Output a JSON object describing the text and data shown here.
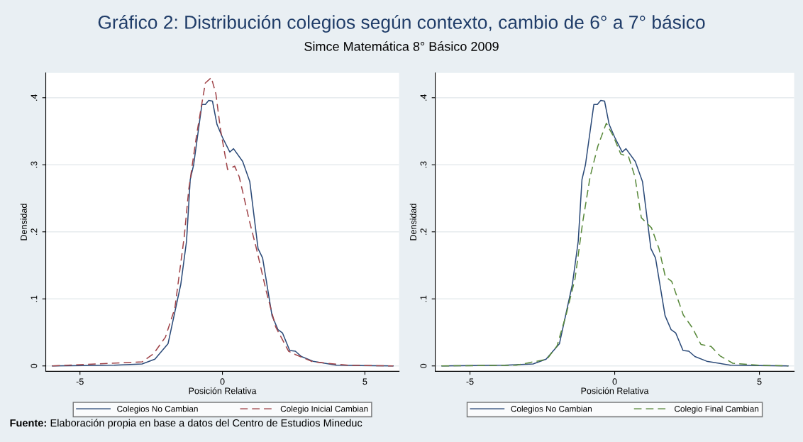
{
  "chart_data": [
    {
      "type": "line",
      "title": "Gráfico 2: Distribución colegios según contexto, cambio de 6° a 7° básico",
      "subtitle": "Simce Matemática 8° Básico 2009",
      "xlabel": "Posición Relativa",
      "ylabel": "Densidad",
      "xlim": [
        -6.2,
        6.2
      ],
      "ylim": [
        -0.008,
        0.437
      ],
      "xticks": [
        -5,
        0,
        5
      ],
      "yticks": [
        {
          "value": 0,
          "label": "0"
        },
        {
          "value": 0.1,
          "label": ".1"
        },
        {
          "value": 0.2,
          "label": ".2"
        },
        {
          "value": 0.3,
          "label": ".3"
        },
        {
          "value": 0.4,
          "label": ".4"
        }
      ],
      "grid": "y",
      "legend": "bottom",
      "marker": "none",
      "series": [
        {
          "name": "Colegios No Cambian",
          "color": "#2b4a78",
          "line_style": "solid",
          "x": [
            -5.97,
            -3.8,
            -2.82,
            -2.37,
            -1.91,
            -1.46,
            -1.26,
            -1.13,
            -1.01,
            -0.72,
            -0.6,
            -0.48,
            -0.35,
            -0.19,
            0,
            0.26,
            0.39,
            0.71,
            0.96,
            1.25,
            1.41,
            1.74,
            1.95,
            2.11,
            2.36,
            2.56,
            2.77,
            3.18,
            4.0,
            5.99
          ],
          "values": [
            0,
            0.001,
            0.003,
            0.01,
            0.033,
            0.122,
            0.186,
            0.278,
            0.3,
            0.39,
            0.39,
            0.396,
            0.395,
            0.36,
            0.341,
            0.319,
            0.324,
            0.305,
            0.275,
            0.175,
            0.161,
            0.075,
            0.054,
            0.049,
            0.023,
            0.022,
            0.014,
            0.007,
            0.001,
            0
          ]
        },
        {
          "name": "Colegio Inicial Cambian",
          "color": "#a0454a",
          "line_style": "dashed",
          "x": [
            -5.97,
            -2.82,
            -2.41,
            -2.0,
            -1.67,
            -1.34,
            -1.18,
            -0.89,
            -0.6,
            -0.39,
            -0.23,
            -0.07,
            0.18,
            0.43,
            0.59,
            0.96,
            1.21,
            1.54,
            1.87,
            2.32,
            2.56,
            3.18,
            4.41,
            5.99
          ],
          "values": [
            0,
            0.006,
            0.0185,
            0.043,
            0.086,
            0.193,
            0.264,
            0.349,
            0.422,
            0.43,
            0.406,
            0.353,
            0.293,
            0.298,
            0.282,
            0.214,
            0.172,
            0.111,
            0.058,
            0.022,
            0.017,
            0.006,
            0.001,
            0
          ]
        }
      ]
    },
    {
      "type": "line",
      "xlabel": "Posición Relativa",
      "ylabel": "Densidad",
      "xlim": [
        -6.2,
        6.2
      ],
      "ylim": [
        -0.008,
        0.437
      ],
      "xticks": [
        -5,
        0,
        5
      ],
      "yticks": [
        {
          "value": 0,
          "label": "0"
        },
        {
          "value": 0.1,
          "label": ".1"
        },
        {
          "value": 0.2,
          "label": ".2"
        },
        {
          "value": 0.3,
          "label": ".3"
        },
        {
          "value": 0.4,
          "label": ".4"
        }
      ],
      "grid": "y",
      "legend": "bottom",
      "marker": "none",
      "annotations": [
        "Fuente: Elaboración propia en base a datos del Centro de Estudios Mineduc"
      ],
      "series": [
        {
          "name": "Colegios No Cambian",
          "color": "#2b4a78",
          "line_style": "solid",
          "x": [
            -5.97,
            -3.8,
            -2.82,
            -2.37,
            -1.91,
            -1.46,
            -1.26,
            -1.13,
            -1.01,
            -0.72,
            -0.6,
            -0.48,
            -0.35,
            -0.19,
            0,
            0.26,
            0.39,
            0.71,
            0.96,
            1.25,
            1.41,
            1.74,
            1.95,
            2.11,
            2.36,
            2.56,
            2.77,
            3.18,
            4.0,
            5.99
          ],
          "values": [
            0,
            0.001,
            0.003,
            0.01,
            0.033,
            0.122,
            0.186,
            0.278,
            0.3,
            0.39,
            0.39,
            0.396,
            0.395,
            0.36,
            0.341,
            0.319,
            0.324,
            0.305,
            0.275,
            0.175,
            0.161,
            0.075,
            0.054,
            0.049,
            0.023,
            0.022,
            0.014,
            0.007,
            0.001,
            0
          ]
        },
        {
          "name": "Colegio Final Cambian",
          "color": "#5a8a3c",
          "line_style": "dashed",
          "x": [
            -5.98,
            -3.4,
            -2.34,
            -1.99,
            -1.68,
            -1.37,
            -1.11,
            -0.85,
            -0.58,
            -0.29,
            -0.05,
            0.21,
            0.48,
            0.7,
            0.92,
            1.27,
            1.53,
            1.75,
            1.97,
            2.37,
            2.68,
            2.98,
            3.33,
            3.64,
            4.08,
            4.96,
            5.98
          ],
          "values": [
            0,
            0.001,
            0.01,
            0.03,
            0.076,
            0.13,
            0.213,
            0.282,
            0.328,
            0.362,
            0.343,
            0.316,
            0.312,
            0.282,
            0.221,
            0.206,
            0.175,
            0.133,
            0.126,
            0.076,
            0.057,
            0.032,
            0.029,
            0.015,
            0.004,
            0.001,
            0
          ]
        }
      ]
    }
  ]
}
